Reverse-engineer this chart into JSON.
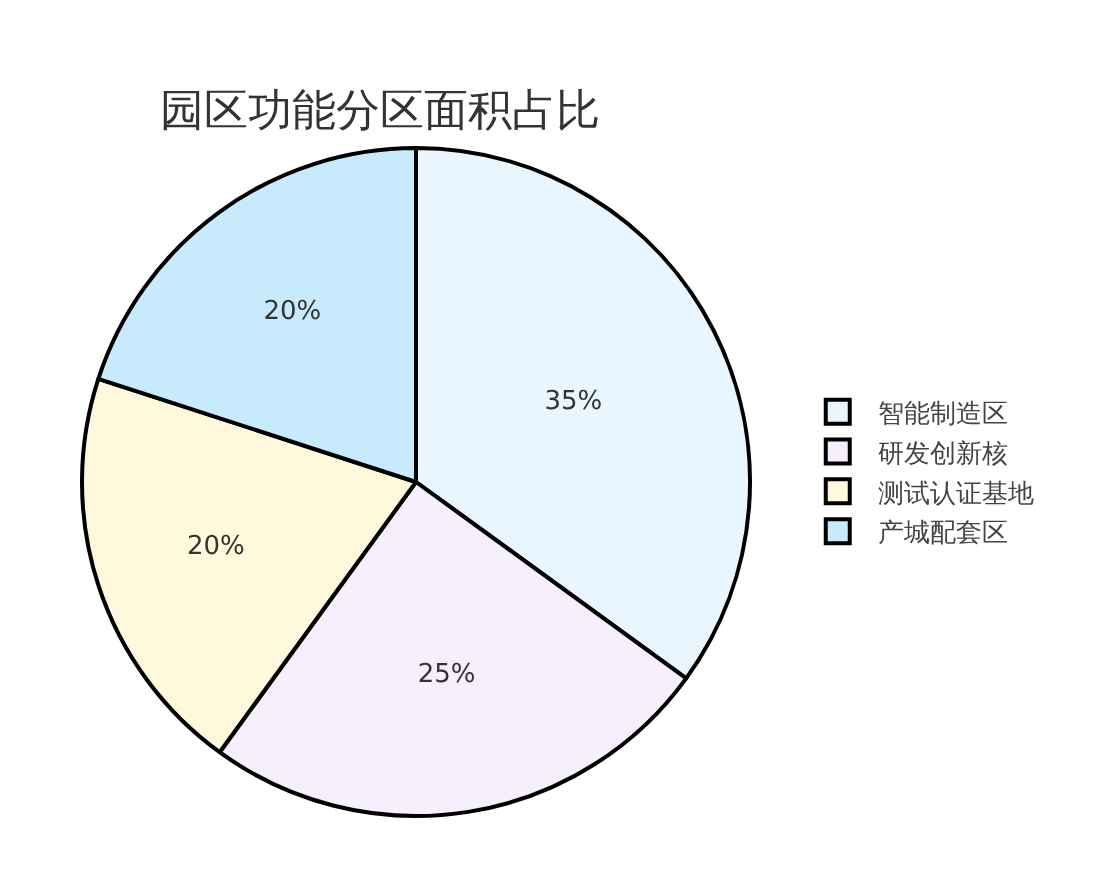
{
  "chart_data": {
    "type": "pie",
    "title": "园区功能分区面积占比",
    "categories": [
      "智能制造区",
      "研发创新核",
      "测试认证基地",
      "产城配套区"
    ],
    "values": [
      35,
      25,
      20,
      20
    ],
    "value_labels": [
      "35%",
      "25%",
      "20%",
      "20%"
    ],
    "colors": [
      "#eaf6ff",
      "#f6effd",
      "#fff8dc",
      "#c8eafd"
    ],
    "legend": "right"
  }
}
